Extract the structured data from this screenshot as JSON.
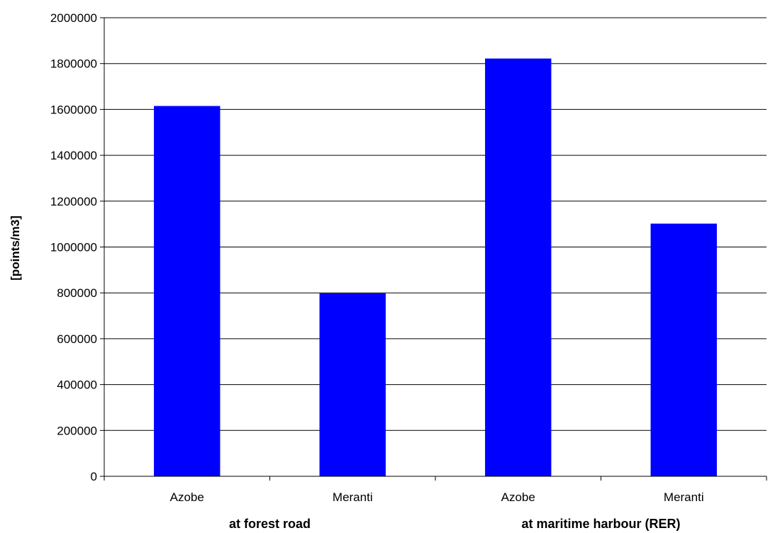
{
  "chart_data": {
    "type": "bar",
    "title": "",
    "xlabel": "",
    "ylabel": "[points/m3]",
    "ylim": [
      0,
      2000000
    ],
    "yticks": [
      0,
      200000,
      400000,
      600000,
      800000,
      1000000,
      1200000,
      1400000,
      1600000,
      1800000,
      2000000
    ],
    "grid": true,
    "legend": "none",
    "categories": [
      "Azobe",
      "Meranti",
      "Azobe",
      "Meranti"
    ],
    "groups": [
      {
        "label": "at forest road",
        "categories": [
          0,
          1
        ]
      },
      {
        "label": "at maritime harbour (RER)",
        "categories": [
          2,
          3
        ]
      }
    ],
    "series": [
      {
        "values": [
          1615000,
          798000,
          1822000,
          1102000
        ],
        "color": "#0000ff"
      }
    ]
  }
}
